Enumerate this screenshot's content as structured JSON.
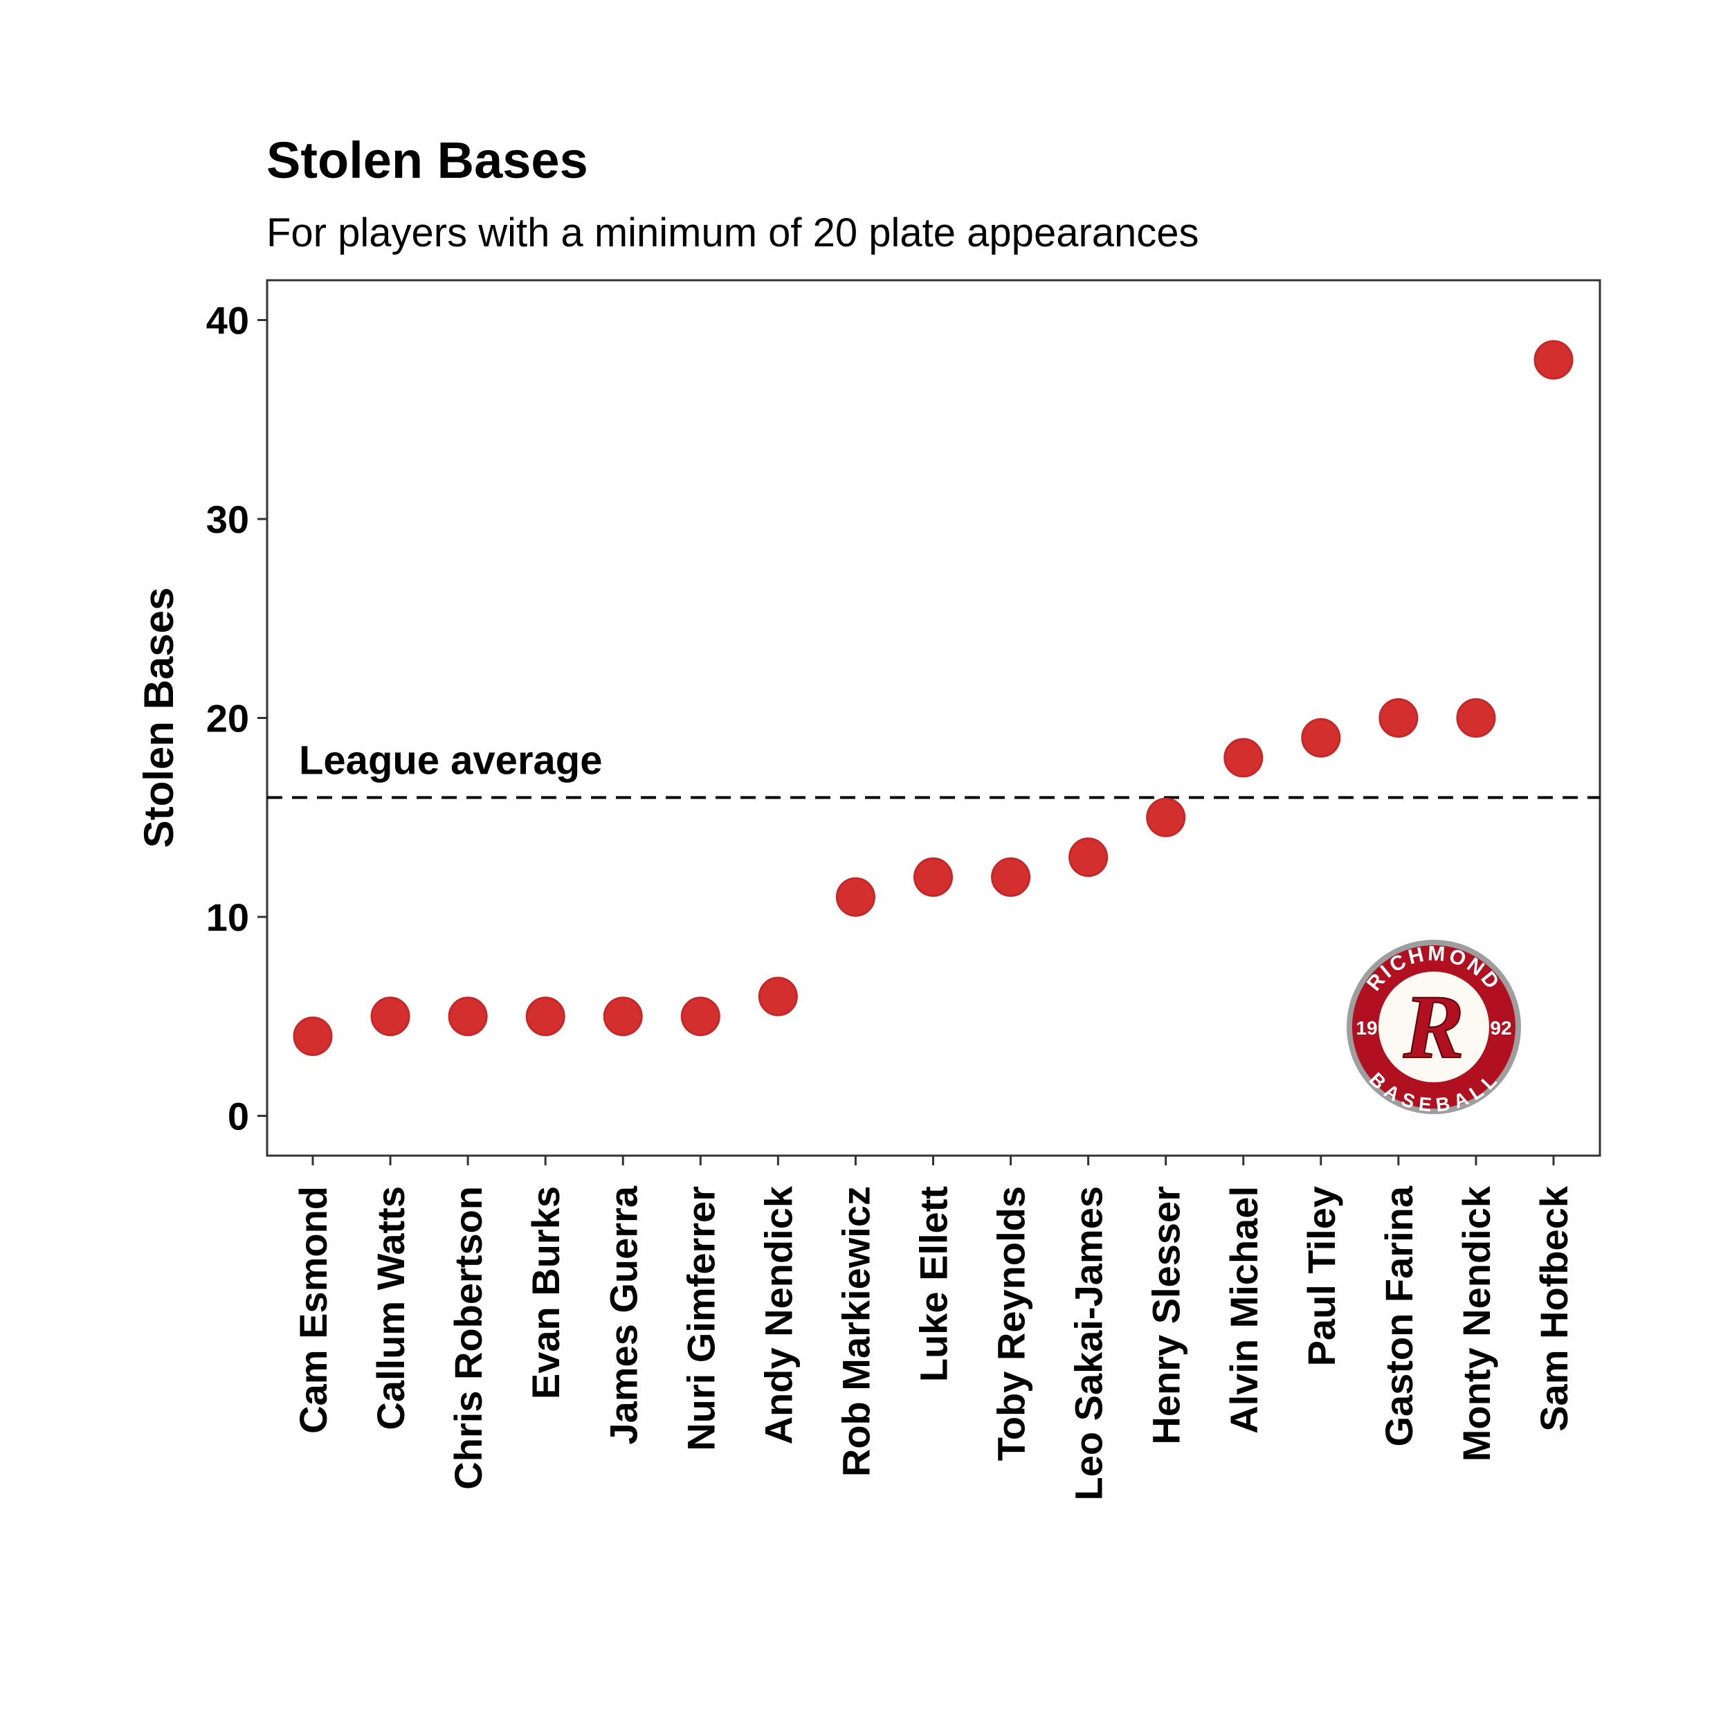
{
  "chart_data": {
    "type": "scatter",
    "title": "Stolen Bases",
    "subtitle": "For players with a minimum of 20 plate appearances",
    "xlabel": "",
    "ylabel": "Stolen Bases",
    "ylim": [
      -2,
      42
    ],
    "yticks": [
      0,
      10,
      20,
      30,
      40
    ],
    "grid": false,
    "categories": [
      "Cam Esmond",
      "Callum Watts",
      "Chris Robertson",
      "Evan Burks",
      "James Guerra",
      "Nuri Gimferrer",
      "Andy Nendick",
      "Rob Markiewicz",
      "Luke Ellett",
      "Toby Reynolds",
      "Leo Sakai-James",
      "Henry Slesser",
      "Alvin Michael",
      "Paul Tiley",
      "Gaston Farina",
      "Monty Nendick",
      "Sam Hofbeck"
    ],
    "values": [
      4,
      5,
      5,
      5,
      5,
      5,
      6,
      11,
      12,
      12,
      13,
      15,
      18,
      19,
      20,
      20,
      38
    ],
    "point_color": "#d32f2f",
    "reference_line": {
      "value": 16,
      "label": "League average",
      "style": "dashed"
    }
  },
  "logo": {
    "top_text": "RICHMOND",
    "bottom_text": "BASEBALL",
    "left_year": "19",
    "right_year": "92",
    "letter": "R",
    "color": "#b01020"
  }
}
